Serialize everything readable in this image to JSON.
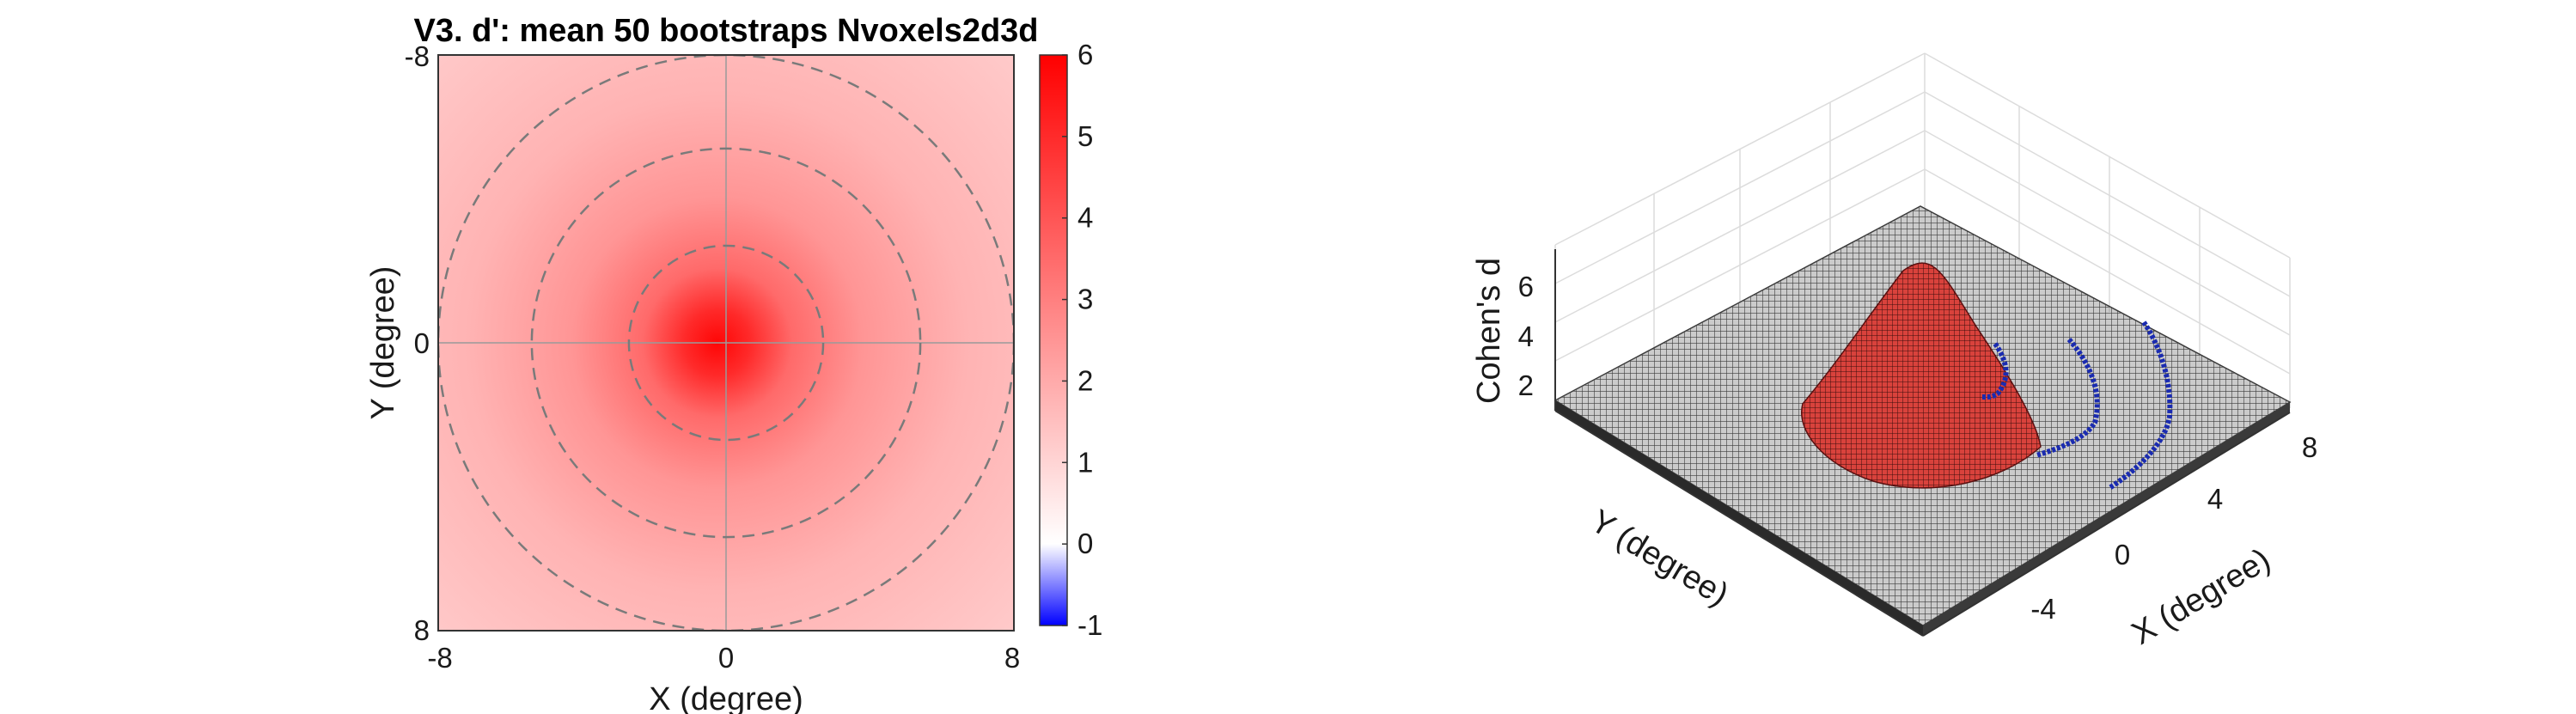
{
  "chart_data": [
    {
      "type": "heatmap",
      "title": "V3. d': mean 50 bootstraps Nvoxels2d3d",
      "xlabel": "X (degree)",
      "ylabel": "Y (degree)",
      "xlim": [
        -8,
        8
      ],
      "ylim": [
        -8,
        8
      ],
      "y_direction": "reversed",
      "xticks": [
        "-8",
        "0",
        "8"
      ],
      "yticks": [
        "-8",
        "0",
        "8"
      ],
      "grid": "crosshair at 0,0",
      "peak": {
        "x": -0.5,
        "y": 0,
        "value": 6
      },
      "dashed_circles_radius_deg": [
        2.7,
        5.4,
        8.0
      ],
      "colorbar": {
        "ticks": [
          "6",
          "5",
          "4",
          "3",
          "2",
          "1",
          "0",
          "-1"
        ],
        "range": [
          -1,
          6
        ],
        "colors": {
          "min": "#0000ff",
          "zero": "#ffffff",
          "max": "#ff0000"
        }
      }
    },
    {
      "type": "surface",
      "zlabel": "Cohen's d",
      "xlabel": "X (degree)",
      "ylabel": "Y (degree)",
      "zticks": [
        "2",
        "4",
        "6"
      ],
      "xticks": [
        "-4",
        "0",
        "4",
        "8"
      ],
      "grid": true,
      "surface_color": "#c9302c",
      "edge_color": "#222222",
      "contour_color": "#1a2bb0"
    }
  ]
}
